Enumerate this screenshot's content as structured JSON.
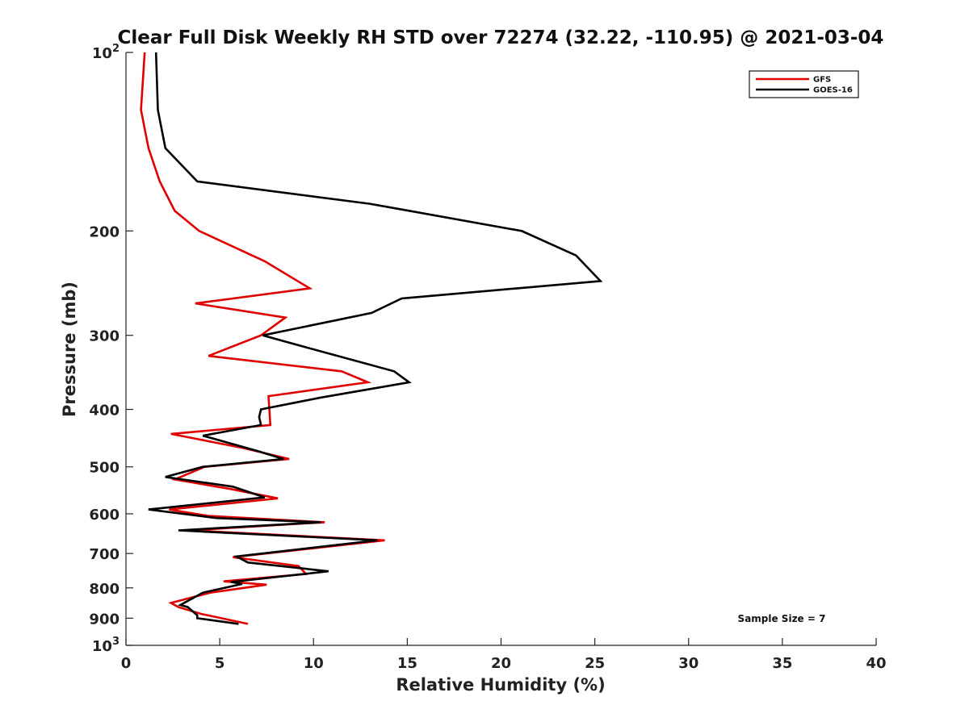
{
  "chart_data": {
    "type": "line",
    "title": "Clear Full Disk Weekly RH STD over 72274 (32.22, -110.95) @ 2021-03-04",
    "xlabel": "Relative Humidity (%)",
    "ylabel": "Pressure (mb)",
    "xlim": [
      0,
      40
    ],
    "ylim": [
      100,
      1000
    ],
    "y_scale": "log",
    "y_reversed": true,
    "x_ticks": [
      "0",
      "5",
      "10",
      "15",
      "20",
      "25",
      "30",
      "35",
      "40"
    ],
    "y_ticks": [
      {
        "value": 100,
        "base": "10",
        "exp": "2"
      },
      {
        "value": 200,
        "label": "200"
      },
      {
        "value": 300,
        "label": "300"
      },
      {
        "value": 400,
        "label": "400"
      },
      {
        "value": 500,
        "label": "500"
      },
      {
        "value": 600,
        "label": "600"
      },
      {
        "value": 700,
        "label": "700"
      },
      {
        "value": 800,
        "label": "800"
      },
      {
        "value": 900,
        "label": "900"
      },
      {
        "value": 1000,
        "base": "10",
        "exp": "3"
      }
    ],
    "legend_position": "top-right",
    "annotation": "Sample Size = 7",
    "series": [
      {
        "name": "GFS",
        "color": "#e00000",
        "points": [
          [
            1.0,
            100
          ],
          [
            0.8,
            125
          ],
          [
            1.2,
            145
          ],
          [
            1.8,
            165
          ],
          [
            2.6,
            185
          ],
          [
            3.9,
            200
          ],
          [
            7.4,
            225
          ],
          [
            9.8,
            250
          ],
          [
            3.7,
            265
          ],
          [
            8.5,
            280
          ],
          [
            7.2,
            300
          ],
          [
            4.4,
            325
          ],
          [
            11.5,
            345
          ],
          [
            12.9,
            360
          ],
          [
            7.6,
            380
          ],
          [
            7.7,
            425
          ],
          [
            2.4,
            440
          ],
          [
            6.3,
            465
          ],
          [
            8.7,
            485
          ],
          [
            4.2,
            500
          ],
          [
            2.6,
            525
          ],
          [
            5.6,
            545
          ],
          [
            8.1,
            565
          ],
          [
            2.3,
            590
          ],
          [
            4.4,
            605
          ],
          [
            10.6,
            620
          ],
          [
            3.4,
            640
          ],
          [
            13.8,
            665
          ],
          [
            5.7,
            710
          ],
          [
            9.2,
            735
          ],
          [
            9.6,
            758
          ],
          [
            5.2,
            780
          ],
          [
            7.5,
            790
          ],
          [
            4.5,
            815
          ],
          [
            2.4,
            848
          ],
          [
            2.8,
            862
          ],
          [
            4.0,
            885
          ],
          [
            6.5,
            920
          ]
        ]
      },
      {
        "name": "GOES-16",
        "color": "#000000",
        "points": [
          [
            1.6,
            100
          ],
          [
            1.7,
            125
          ],
          [
            2.1,
            145
          ],
          [
            3.8,
            165
          ],
          [
            13.0,
            180
          ],
          [
            21.1,
            200
          ],
          [
            24.0,
            220
          ],
          [
            25.3,
            243
          ],
          [
            14.7,
            260
          ],
          [
            13.1,
            275
          ],
          [
            7.3,
            300
          ],
          [
            10.5,
            320
          ],
          [
            14.3,
            345
          ],
          [
            15.1,
            360
          ],
          [
            10.4,
            382
          ],
          [
            7.2,
            400
          ],
          [
            7.1,
            412
          ],
          [
            7.2,
            425
          ],
          [
            4.1,
            443
          ],
          [
            7.0,
            470
          ],
          [
            8.4,
            485
          ],
          [
            4.1,
            500
          ],
          [
            2.1,
            520
          ],
          [
            5.7,
            540
          ],
          [
            7.4,
            563
          ],
          [
            1.2,
            590
          ],
          [
            4.8,
            610
          ],
          [
            10.4,
            620
          ],
          [
            2.8,
            640
          ],
          [
            13.4,
            665
          ],
          [
            5.9,
            708
          ],
          [
            6.5,
            725
          ],
          [
            10.8,
            750
          ],
          [
            5.6,
            782
          ],
          [
            6.2,
            788
          ],
          [
            4.1,
            815
          ],
          [
            2.9,
            855
          ],
          [
            3.3,
            862
          ],
          [
            3.8,
            890
          ],
          [
            3.8,
            900
          ],
          [
            6.0,
            920
          ]
        ]
      }
    ]
  }
}
